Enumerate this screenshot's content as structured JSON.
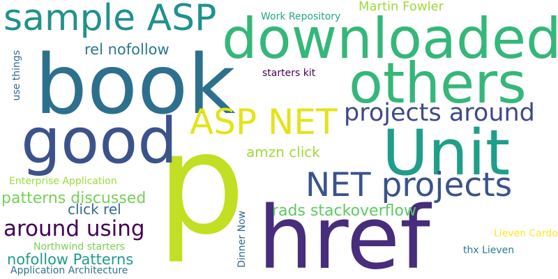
{
  "words": [
    {
      "text": "p",
      "color": "#c2df23"
    },
    {
      "text": "book",
      "color": "#2d708e"
    },
    {
      "text": "href",
      "color": "#472d7b"
    },
    {
      "text": "downloaded",
      "color": "#35b779"
    },
    {
      "text": "others",
      "color": "#35b779"
    },
    {
      "text": "Unit",
      "color": "#1f9e89"
    },
    {
      "text": "good",
      "color": "#3b528b"
    },
    {
      "text": "sample ASP",
      "color": "#21918c"
    },
    {
      "text": "ASP NET",
      "color": "#e3e418"
    },
    {
      "text": "NET projects",
      "color": "#3b528b"
    },
    {
      "text": "projects around",
      "color": "#3e4989"
    },
    {
      "text": "around using",
      "color": "#440154"
    },
    {
      "text": "patterns discussed",
      "color": "#75d054"
    },
    {
      "text": "nofollow Patterns",
      "color": "#1e9b8a"
    },
    {
      "text": "rel nofollow",
      "color": "#2a788e"
    },
    {
      "text": "rads stackoverflow",
      "color": "#5ec962"
    },
    {
      "text": "amzn click",
      "color": "#a0da39"
    },
    {
      "text": "click rel",
      "color": "#31688e"
    },
    {
      "text": "Martin Fowler",
      "color": "#a0da39"
    },
    {
      "text": "Work Repository",
      "color": "#22a884"
    },
    {
      "text": "starters kit",
      "color": "#440154"
    },
    {
      "text": "Enterprise Application",
      "color": "#a0da39"
    },
    {
      "text": "Northwind starters",
      "color": "#7ad151"
    },
    {
      "text": "Application Architecture",
      "color": "#2c728e"
    },
    {
      "text": "Lieven Cardoen",
      "color": "#31688e"
    },
    {
      "text": "thx Lieven",
      "color": "#31688e"
    },
    {
      "text": "use things",
      "color": "#fde725"
    },
    {
      "text": "Dinner Now",
      "color": "#2a788e"
    }
  ]
}
